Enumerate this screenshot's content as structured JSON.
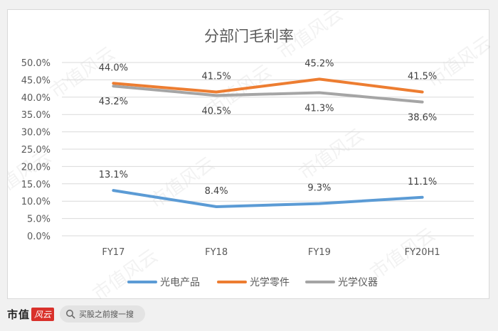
{
  "watermark": "市值风云",
  "footer": {
    "brand": "市值",
    "brand_mark": "风云",
    "search_placeholder": "买股之前搜一搜"
  },
  "chart_data": {
    "type": "line",
    "title": "分部门毛利率",
    "categories": [
      "FY17",
      "FY18",
      "FY19",
      "FY20H1"
    ],
    "yticks": [
      "0.0%",
      "5.0%",
      "10.0%",
      "15.0%",
      "20.0%",
      "25.0%",
      "30.0%",
      "35.0%",
      "40.0%",
      "45.0%",
      "50.0%"
    ],
    "ylim": [
      0,
      50
    ],
    "grid": true,
    "legend_position": "bottom",
    "series": [
      {
        "name": "光电产品",
        "values": [
          13.1,
          8.4,
          9.3,
          11.1
        ],
        "labels": [
          "13.1%",
          "8.4%",
          "9.3%",
          "11.1%"
        ],
        "color": "#5b9bd5",
        "label_side": "above"
      },
      {
        "name": "光学零件",
        "values": [
          44.0,
          41.5,
          45.2,
          41.5
        ],
        "labels": [
          "44.0%",
          "41.5%",
          "45.2%",
          "41.5%"
        ],
        "color": "#ed7d31",
        "label_side": "above"
      },
      {
        "name": "光学仪器",
        "values": [
          43.2,
          40.5,
          41.3,
          38.6
        ],
        "labels": [
          "43.2%",
          "40.5%",
          "41.3%",
          "38.6%"
        ],
        "color": "#a5a5a5",
        "label_side": "below"
      }
    ]
  }
}
